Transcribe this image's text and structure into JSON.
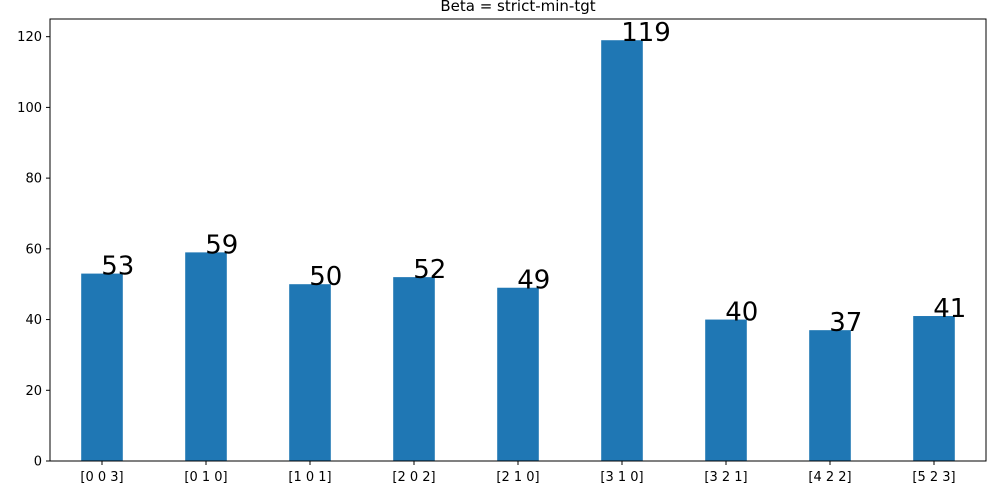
{
  "chart_data": {
    "type": "bar",
    "title": "Beta = strict-min-tgt",
    "xlabel": "",
    "ylabel": "",
    "categories": [
      "[0 0 3]",
      "[0 1 0]",
      "[1 0 1]",
      "[2 0 2]",
      "[2 1 0]",
      "[3 1 0]",
      "[3 2 1]",
      "[4 2 2]",
      "[5 2 3]"
    ],
    "values": [
      53,
      59,
      50,
      52,
      49,
      119,
      40,
      37,
      41
    ],
    "data_labels": [
      "53",
      "59",
      "50",
      "52",
      "49",
      "119",
      "40",
      "37",
      "41"
    ],
    "ylim": [
      0,
      125
    ],
    "yticks": [
      0,
      20,
      40,
      60,
      80,
      100,
      120
    ],
    "ytick_labels": [
      "0",
      "20",
      "40",
      "60",
      "80",
      "100",
      "120"
    ],
    "grid": false,
    "legend": null,
    "bar_color": "#1f77b4"
  }
}
